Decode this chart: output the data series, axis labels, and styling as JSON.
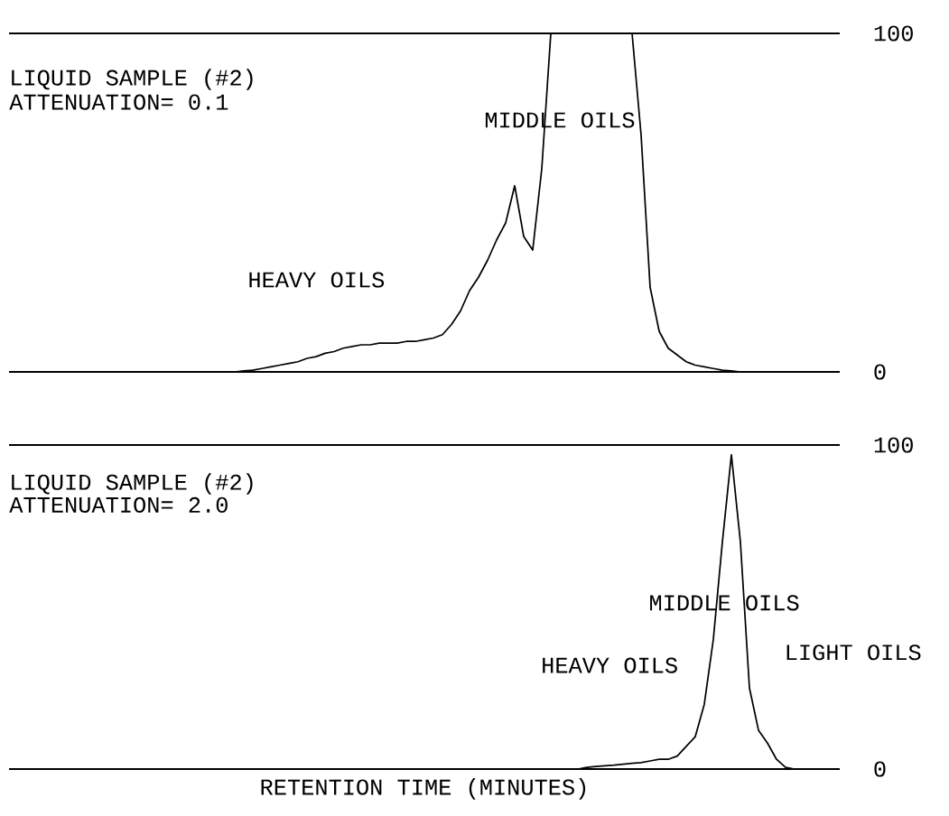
{
  "chart_data": [
    {
      "type": "line",
      "categories": [
        null,
        null,
        null,
        null,
        null,
        null,
        null,
        null,
        null,
        null,
        null,
        null,
        null,
        null,
        null,
        null,
        null,
        null,
        null,
        null,
        null,
        null,
        null,
        null,
        null,
        null,
        null,
        null,
        null,
        null,
        null,
        null,
        null,
        null,
        null,
        null,
        null,
        null,
        null,
        null,
        null,
        null,
        null,
        null,
        null,
        null,
        null,
        null,
        null,
        null,
        null,
        null,
        null,
        null,
        null,
        null,
        null,
        null,
        null,
        null,
        null,
        null,
        null,
        null,
        null,
        null,
        null,
        null,
        null,
        null,
        null,
        null,
        null,
        null,
        null,
        null,
        null,
        null,
        null,
        null,
        null,
        null,
        null,
        null,
        null,
        null,
        null,
        null,
        null,
        null,
        null,
        null,
        null
      ],
      "values": [
        0,
        0,
        0,
        0,
        0,
        0,
        0,
        0,
        0,
        0,
        0,
        0,
        0,
        0,
        0,
        0,
        0,
        0,
        0,
        0,
        0,
        0,
        0,
        0,
        0,
        0,
        0.3,
        0.5,
        1,
        1.5,
        2,
        2.5,
        3,
        4,
        4.5,
        5.5,
        6,
        7,
        7.5,
        8,
        8,
        8.5,
        8.5,
        8.5,
        9,
        9,
        9.5,
        10,
        11,
        14,
        18,
        24,
        28,
        33,
        39,
        44,
        55,
        40,
        36,
        60,
        100,
        100,
        100,
        100,
        100,
        100,
        100,
        100,
        100,
        100,
        70,
        25,
        12,
        7,
        5,
        3,
        2,
        1.5,
        1,
        0.5,
        0.3,
        0,
        0,
        0,
        0,
        0,
        0,
        0,
        0,
        0,
        0,
        0,
        0
      ],
      "color": "#000000",
      "ylim": [
        0,
        100
      ],
      "yticks": [
        0,
        100
      ],
      "tick_labels": "y",
      "annotations": [
        "LIQUID SAMPLE (#2)",
        "ATTENUATION= 0.1",
        "MIDDLE OILS",
        "HEAVY OILS"
      ]
    },
    {
      "type": "line",
      "categories": [
        null,
        null,
        null,
        null,
        null,
        null,
        null,
        null,
        null,
        null,
        null,
        null,
        null,
        null,
        null,
        null,
        null,
        null,
        null,
        null,
        null,
        null,
        null,
        null,
        null,
        null,
        null,
        null,
        null,
        null,
        null,
        null,
        null,
        null,
        null,
        null,
        null,
        null,
        null,
        null,
        null,
        null,
        null,
        null,
        null,
        null,
        null,
        null,
        null,
        null,
        null,
        null,
        null,
        null,
        null,
        null,
        null,
        null,
        null,
        null,
        null,
        null,
        null,
        null,
        null,
        null,
        null,
        null,
        null,
        null,
        null,
        null,
        null,
        null,
        null,
        null,
        null,
        null,
        null,
        null,
        null,
        null,
        null,
        null,
        null,
        null,
        null,
        null,
        null,
        null,
        null,
        null,
        null
      ],
      "values": [
        0,
        0,
        0,
        0,
        0,
        0,
        0,
        0,
        0,
        0,
        0,
        0,
        0,
        0,
        0,
        0,
        0,
        0,
        0,
        0,
        0,
        0,
        0,
        0,
        0,
        0,
        0,
        0,
        0,
        0,
        0,
        0,
        0,
        0,
        0,
        0,
        0,
        0,
        0,
        0,
        0,
        0,
        0,
        0,
        0,
        0,
        0,
        0,
        0,
        0,
        0,
        0,
        0,
        0,
        0,
        0,
        0,
        0,
        0,
        0,
        0,
        0,
        0,
        0,
        0.5,
        0.8,
        1,
        1.2,
        1.5,
        1.8,
        2,
        2.5,
        3,
        3,
        4,
        7,
        10,
        20,
        40,
        70,
        97,
        70,
        25,
        12,
        8,
        3,
        0.5,
        0,
        0,
        0,
        0,
        0,
        0
      ],
      "color": "#000000",
      "ylim": [
        0,
        100
      ],
      "yticks": [
        0,
        100
      ],
      "tick_labels": "y",
      "xlabel": "RETENTION TIME (MINUTES)",
      "annotations": [
        "LIQUID SAMPLE (#2)",
        "ATTENUATION= 2.0",
        "MIDDLE OILS",
        "HEAVY OILS",
        "LIGHT OILS"
      ]
    }
  ]
}
